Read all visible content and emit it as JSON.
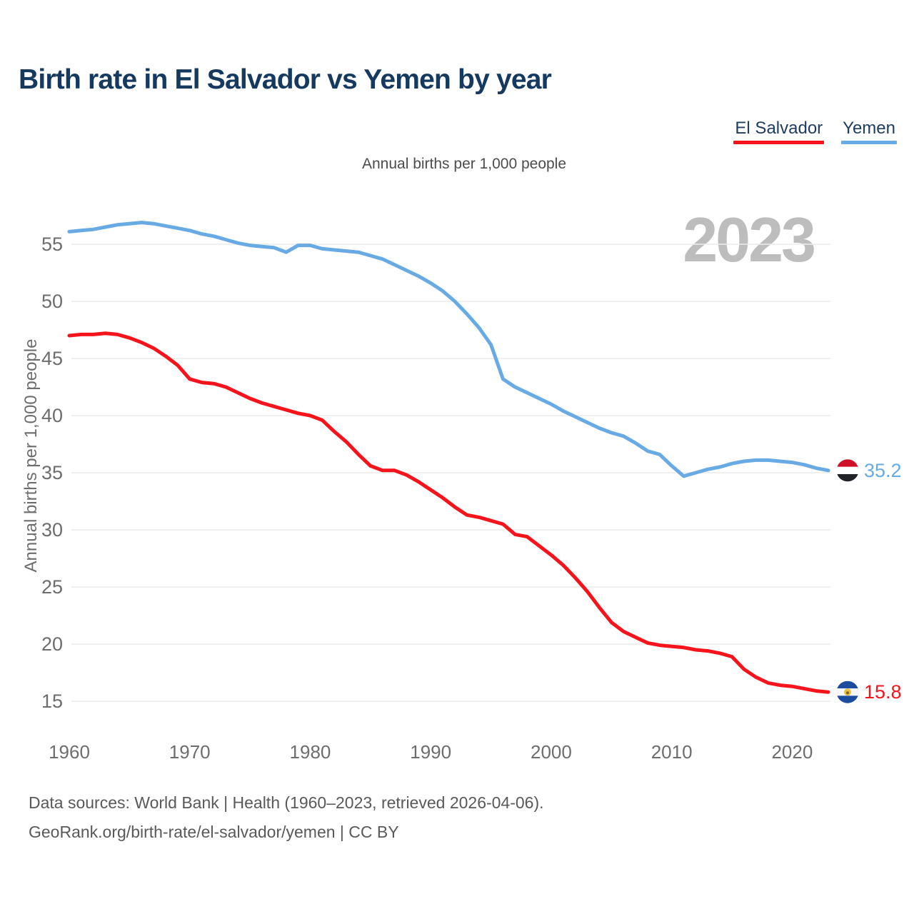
{
  "header": {
    "title": "Birth rate in El Salvador vs Yemen by year"
  },
  "legend": {
    "items": [
      {
        "label": "El Salvador",
        "color": "#f6141c"
      },
      {
        "label": "Yemen",
        "color": "#68aae4"
      }
    ]
  },
  "watermark": "2023",
  "footer": {
    "line1": "Data sources: World Bank | Health (1960–2023, retrieved 2026-04-06).",
    "line2": "GeoRank.org/birth-rate/el-salvador/yemen | CC BY"
  },
  "chart_data": {
    "type": "line",
    "title": "Birth rate in El Salvador vs Yemen by year",
    "subtitle": "Annual births per 1,000 people",
    "ylabel": "Annual births per 1,000 people",
    "xlabel": "",
    "ylim": [
      13,
      58.5
    ],
    "yticks": [
      15,
      20,
      25,
      30,
      35,
      40,
      45,
      50,
      55
    ],
    "xticks": [
      1960,
      1970,
      1980,
      1990,
      2000,
      2010,
      2020
    ],
    "grid": "horizontal",
    "legend_position": "top-right",
    "x": [
      1960,
      1961,
      1962,
      1963,
      1964,
      1965,
      1966,
      1967,
      1968,
      1969,
      1970,
      1971,
      1972,
      1973,
      1974,
      1975,
      1976,
      1977,
      1978,
      1979,
      1980,
      1981,
      1982,
      1983,
      1984,
      1985,
      1986,
      1987,
      1988,
      1989,
      1990,
      1991,
      1992,
      1993,
      1994,
      1995,
      1996,
      1997,
      1998,
      1999,
      2000,
      2001,
      2002,
      2003,
      2004,
      2005,
      2006,
      2007,
      2008,
      2009,
      2010,
      2011,
      2012,
      2013,
      2014,
      2015,
      2016,
      2017,
      2018,
      2019,
      2020,
      2021,
      2022,
      2023
    ],
    "series": [
      {
        "name": "El Salvador",
        "color": "#f6141c",
        "end_label": "15.8",
        "flag": "el-salvador-flag",
        "flag_stripes": [
          "#1b4c9d",
          "#f4f7fb",
          "#1b4c9d"
        ],
        "flag_emblem_color": "#e9c13e",
        "values": [
          47.0,
          47.1,
          47.1,
          47.2,
          47.1,
          46.8,
          46.4,
          45.9,
          45.2,
          44.4,
          43.2,
          42.9,
          42.8,
          42.5,
          42.0,
          41.5,
          41.1,
          40.8,
          40.5,
          40.2,
          40.0,
          39.6,
          38.6,
          37.7,
          36.6,
          35.6,
          35.2,
          35.2,
          34.8,
          34.2,
          33.5,
          32.8,
          32.0,
          31.3,
          31.1,
          30.8,
          30.5,
          29.6,
          29.4,
          28.6,
          27.8,
          26.9,
          25.8,
          24.6,
          23.2,
          21.9,
          21.1,
          20.6,
          20.1,
          19.9,
          19.8,
          19.7,
          19.5,
          19.4,
          19.2,
          18.9,
          17.8,
          17.1,
          16.6,
          16.4,
          16.3,
          16.1,
          15.9,
          15.8
        ]
      },
      {
        "name": "Yemen",
        "color": "#68aae4",
        "end_label": "35.2",
        "flag": "yemen-flag",
        "flag_stripes": [
          "#ce1126",
          "#ffffff",
          "#23242a"
        ],
        "flag_emblem_color": null,
        "values": [
          56.1,
          56.2,
          56.3,
          56.5,
          56.7,
          56.8,
          56.9,
          56.8,
          56.6,
          56.4,
          56.2,
          55.9,
          55.7,
          55.4,
          55.1,
          54.9,
          54.8,
          54.7,
          54.3,
          54.9,
          54.9,
          54.6,
          54.5,
          54.4,
          54.3,
          54.0,
          53.7,
          53.2,
          52.7,
          52.2,
          51.6,
          50.9,
          50.0,
          48.9,
          47.7,
          46.2,
          43.2,
          42.5,
          42.0,
          41.5,
          41.0,
          40.4,
          39.9,
          39.4,
          38.9,
          38.5,
          38.2,
          37.6,
          36.9,
          36.6,
          35.6,
          34.7,
          35.0,
          35.3,
          35.5,
          35.8,
          36.0,
          36.1,
          36.1,
          36.0,
          35.9,
          35.7,
          35.4,
          35.2
        ]
      }
    ]
  }
}
